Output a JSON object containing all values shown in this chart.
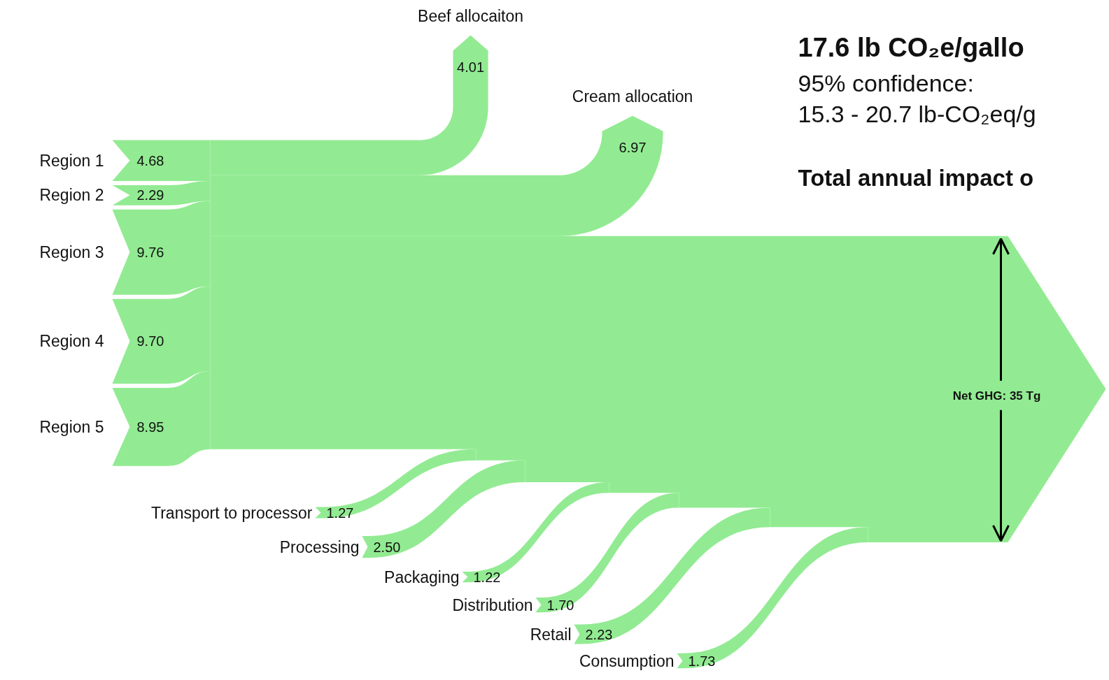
{
  "chart_data": {
    "type": "other",
    "title": "17.6 lb CO₂e/gallo",
    "subtitle": "95%  confidence:\n15.3 - 20.7 lb-CO₂eq/g",
    "annotations": [
      "Total annual impact o",
      "Net GHG: 35 Tg"
    ],
    "categories": [
      "Region 1",
      "Region 2",
      "Region 3",
      "Region 4",
      "Region 5",
      "Beef allocaiton",
      "Cream allocation",
      "Transport to processor",
      "Processing",
      "Packaging",
      "Distribution",
      "Retail",
      "Consumption"
    ],
    "series": [
      {
        "color": "#92eb92",
        "values": [
          4.68,
          2.29,
          9.76,
          9.7,
          8.95,
          null,
          null,
          null,
          null,
          null,
          null,
          null,
          null
        ],
        "value_labels": [
          "4.68",
          "2.29",
          "9.76",
          "9.70",
          "8.95",
          null,
          null,
          null,
          null,
          null,
          null,
          null,
          null
        ]
      },
      {
        "color": "#92eb92",
        "values": [
          null,
          null,
          null,
          null,
          null,
          4.01,
          6.97,
          null,
          null,
          null,
          null,
          null,
          null
        ],
        "value_labels": [
          null,
          null,
          null,
          null,
          null,
          "4.01",
          "6.97",
          null,
          null,
          null,
          null,
          null,
          null
        ]
      },
      {
        "color": "#92eb92",
        "values": [
          null,
          null,
          null,
          null,
          null,
          null,
          null,
          1.27,
          2.5,
          1.22,
          1.7,
          2.23,
          1.73
        ],
        "value_labels": [
          null,
          null,
          null,
          null,
          null,
          null,
          null,
          "1.27",
          "2.50",
          "1.22",
          "1.70",
          "2.23",
          "1.73"
        ]
      }
    ]
  }
}
